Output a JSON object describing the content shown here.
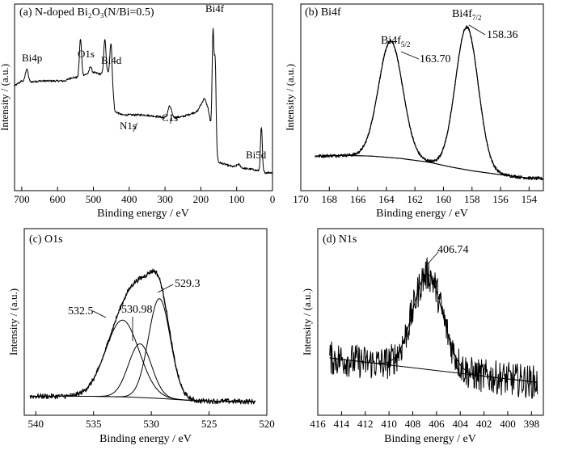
{
  "chart_data": [
    {
      "type": "line",
      "title": "(a) N-doped Bi₂O₃(N/Bi=0.5)",
      "xlabel": "Binding energy / eV",
      "ylabel": "Intensity / (a.u.)",
      "xlim": [
        720,
        0
      ],
      "ylim": [
        0,
        100
      ],
      "xticks": [
        700,
        600,
        500,
        400,
        300,
        200,
        100,
        0
      ],
      "x_reversed": true,
      "y_tick_labels": false,
      "baseline": [
        [
          720,
          55
        ],
        [
          700,
          58
        ],
        [
          690,
          57
        ],
        [
          650,
          58
        ],
        [
          580,
          58
        ],
        [
          560,
          60
        ],
        [
          545,
          60
        ],
        [
          520,
          62
        ],
        [
          500,
          63
        ],
        [
          480,
          62
        ],
        [
          460,
          63
        ],
        [
          450,
          62
        ],
        [
          440,
          40
        ],
        [
          420,
          38
        ],
        [
          360,
          38
        ],
        [
          320,
          37
        ],
        [
          290,
          36
        ],
        [
          250,
          37
        ],
        [
          210,
          40
        ],
        [
          190,
          48
        ],
        [
          180,
          42
        ],
        [
          175,
          36
        ],
        [
          165,
          20
        ],
        [
          150,
          10
        ],
        [
          120,
          8
        ],
        [
          100,
          7
        ],
        [
          60,
          6
        ],
        [
          38,
          5
        ],
        [
          20,
          4
        ],
        [
          0,
          4
        ]
      ],
      "peaks": [
        {
          "center": 686,
          "height": 8,
          "width": 4
        },
        {
          "center": 536,
          "height": 22,
          "width": 3
        },
        {
          "center": 508,
          "height": 4,
          "width": 3
        },
        {
          "center": 468,
          "height": 20,
          "width": 3
        },
        {
          "center": 451,
          "height": 18,
          "width": 3
        },
        {
          "center": 287,
          "height": 7,
          "width": 5
        },
        {
          "center": 166,
          "height": 64,
          "width": 2.5
        },
        {
          "center": 160,
          "height": 52,
          "width": 2.5
        },
        {
          "center": 95,
          "height": 2,
          "width": 5
        },
        {
          "center": 31,
          "height": 26,
          "width": 2.5
        }
      ],
      "annotations": [
        {
          "text": "Bi4p",
          "x": 686
        },
        {
          "text": "O1s",
          "x": 536
        },
        {
          "text": "Bi4d",
          "x": 468
        },
        {
          "text": "N1s",
          "x": 435
        },
        {
          "text": "C1s",
          "x": 287
        },
        {
          "text": "Bi4f",
          "x": 165
        },
        {
          "text": "Bi5d",
          "x": 31
        }
      ]
    },
    {
      "type": "line",
      "title": "(b) Bi4f",
      "xlabel": "Binding energy / eV",
      "ylabel": "Intensity / (a.u.)",
      "xlim": [
        170,
        153
      ],
      "ylim": [
        0,
        100
      ],
      "xticks": [
        170,
        168,
        166,
        164,
        162,
        160,
        158,
        156,
        154
      ],
      "x_reversed": true,
      "y_tick_labels": false,
      "background": [
        [
          169,
          15
        ],
        [
          167,
          15.5
        ],
        [
          165,
          15
        ],
        [
          163,
          13.5
        ],
        [
          161,
          11
        ],
        [
          159.5,
          8
        ],
        [
          158,
          5.5
        ],
        [
          156,
          3
        ],
        [
          154,
          0.8
        ],
        [
          153,
          0.5
        ]
      ],
      "components": [
        {
          "center": 163.7,
          "height": 75,
          "width": 0.85,
          "label": "Bi4f₅/₂ 163.70"
        },
        {
          "center": 158.36,
          "height": 92,
          "width": 0.8,
          "label": "Bi4f₇/₂ 158.36"
        }
      ],
      "peak_labels": [
        {
          "name": "Bi4f",
          "sub": "5/2",
          "value": "163.70"
        },
        {
          "name": "Bi4f",
          "sub": "7/2",
          "value": "158.36"
        }
      ]
    },
    {
      "type": "line",
      "title": "(c) O1s",
      "xlabel": "Binding energy / eV",
      "ylabel": "Intensity / (a.u.)",
      "xlim": [
        541,
        520
      ],
      "ylim": [
        0,
        100
      ],
      "xticks": [
        540,
        535,
        530,
        525,
        520
      ],
      "x_reversed": true,
      "y_tick_labels": false,
      "background": [
        [
          540.5,
          5
        ],
        [
          535,
          5
        ],
        [
          532,
          4.5
        ],
        [
          529,
          3.5
        ],
        [
          526,
          2
        ],
        [
          521,
          1.5
        ]
      ],
      "components": [
        {
          "center": 532.5,
          "height": 50,
          "width": 1.45,
          "label": "532.5"
        },
        {
          "center": 530.98,
          "height": 35,
          "width": 1.0,
          "label": "530.98"
        },
        {
          "center": 529.3,
          "height": 65,
          "width": 0.95,
          "label": "529.3"
        }
      ],
      "peak_labels": [
        "532.5",
        "530.98",
        "529.3"
      ]
    },
    {
      "type": "line",
      "title": "(d) N1s",
      "xlabel": "Binding energy / eV",
      "ylabel": "Intensity / (a.u.)",
      "xlim": [
        416,
        397
      ],
      "ylim": [
        0,
        100
      ],
      "xticks": [
        416,
        414,
        412,
        410,
        408,
        406,
        404,
        402,
        400,
        398
      ],
      "x_reversed": true,
      "y_tick_labels": false,
      "background": [
        [
          415,
          30
        ],
        [
          397.5,
          14
        ]
      ],
      "components": [
        {
          "center": 406.74,
          "height": 62,
          "width": 1.25,
          "label": "406.74"
        }
      ],
      "peak_labels": [
        "406.74"
      ]
    }
  ]
}
